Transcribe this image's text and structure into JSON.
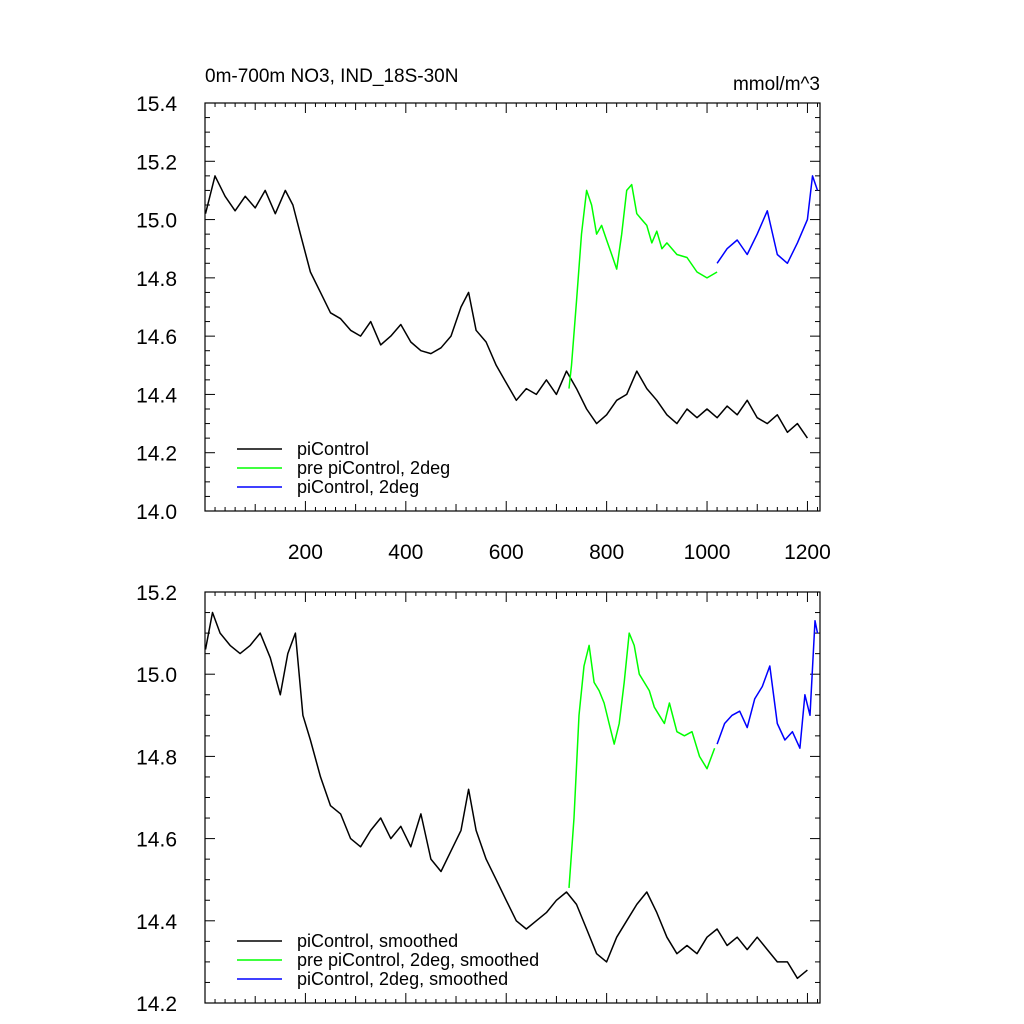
{
  "chart_data": [
    {
      "type": "line",
      "title": "0m-700m NO3, IND_18S-30N",
      "units": "mmol/m^3",
      "xlim": [
        0,
        1225
      ],
      "ylim": [
        14.0,
        15.4
      ],
      "xticks": [
        "200",
        "400",
        "600",
        "800",
        "1000",
        "1200"
      ],
      "yticks": [
        "14.0",
        "14.2",
        "14.4",
        "14.6",
        "14.8",
        "15.0",
        "15.2",
        "15.4"
      ],
      "legend_position": "bottom-left",
      "series": [
        {
          "name": "piControl",
          "color": "#000000",
          "x": [
            1,
            20,
            40,
            60,
            80,
            100,
            120,
            140,
            160,
            175,
            190,
            210,
            230,
            250,
            270,
            290,
            310,
            330,
            350,
            370,
            390,
            410,
            430,
            450,
            470,
            490,
            510,
            525,
            540,
            560,
            580,
            600,
            620,
            640,
            660,
            680,
            700,
            720,
            740,
            760,
            780,
            800,
            820,
            840,
            860,
            880,
            900,
            920,
            940,
            960,
            980,
            1000,
            1020,
            1040,
            1060,
            1080,
            1100,
            1120,
            1140,
            1160,
            1180,
            1200
          ],
          "y": [
            15.02,
            15.15,
            15.08,
            15.03,
            15.08,
            15.04,
            15.1,
            15.02,
            15.1,
            15.05,
            14.95,
            14.82,
            14.75,
            14.68,
            14.66,
            14.62,
            14.6,
            14.65,
            14.57,
            14.6,
            14.64,
            14.58,
            14.55,
            14.54,
            14.56,
            14.6,
            14.7,
            14.75,
            14.62,
            14.58,
            14.5,
            14.44,
            14.38,
            14.42,
            14.4,
            14.45,
            14.4,
            14.48,
            14.42,
            14.35,
            14.3,
            14.33,
            14.38,
            14.4,
            14.48,
            14.42,
            14.38,
            14.33,
            14.3,
            14.35,
            14.32,
            14.35,
            14.32,
            14.36,
            14.33,
            14.38,
            14.32,
            14.3,
            14.33,
            14.27,
            14.3,
            14.25
          ]
        },
        {
          "name": "pre piControl, 2deg",
          "color": "#00ff00",
          "x": [
            725,
            730,
            740,
            750,
            760,
            770,
            780,
            790,
            800,
            810,
            820,
            830,
            840,
            850,
            860,
            870,
            880,
            890,
            900,
            910,
            920,
            940,
            960,
            980,
            1000,
            1020
          ],
          "y": [
            14.42,
            14.5,
            14.72,
            14.95,
            15.1,
            15.05,
            14.95,
            14.98,
            14.93,
            14.88,
            14.83,
            14.95,
            15.1,
            15.12,
            15.02,
            15.0,
            14.98,
            14.92,
            14.96,
            14.9,
            14.92,
            14.88,
            14.87,
            14.82,
            14.8,
            14.82
          ]
        },
        {
          "name": "piControl, 2deg",
          "color": "#0000ff",
          "x": [
            1020,
            1040,
            1060,
            1080,
            1100,
            1120,
            1140,
            1160,
            1180,
            1200,
            1210,
            1220
          ],
          "y": [
            14.85,
            14.9,
            14.93,
            14.88,
            14.95,
            15.03,
            14.88,
            14.85,
            14.92,
            15.0,
            15.15,
            15.1
          ]
        }
      ]
    },
    {
      "type": "line",
      "xlim": [
        0,
        1225
      ],
      "ylim": [
        14.2,
        15.2
      ],
      "yticks": [
        "14.2",
        "14.4",
        "14.6",
        "14.8",
        "15.0",
        "15.2"
      ],
      "legend_position": "bottom-left",
      "series": [
        {
          "name": "piControl, smoothed",
          "color": "#000000",
          "x": [
            1,
            15,
            30,
            50,
            70,
            90,
            110,
            130,
            150,
            165,
            180,
            195,
            210,
            230,
            250,
            270,
            290,
            310,
            330,
            350,
            370,
            390,
            410,
            430,
            450,
            470,
            490,
            510,
            525,
            540,
            560,
            580,
            600,
            620,
            640,
            660,
            680,
            700,
            720,
            740,
            760,
            780,
            800,
            820,
            840,
            860,
            880,
            900,
            920,
            940,
            960,
            980,
            1000,
            1020,
            1040,
            1060,
            1080,
            1100,
            1120,
            1140,
            1160,
            1180,
            1200
          ],
          "y": [
            15.06,
            15.15,
            15.1,
            15.07,
            15.05,
            15.07,
            15.1,
            15.04,
            14.95,
            15.05,
            15.1,
            14.9,
            14.84,
            14.75,
            14.68,
            14.66,
            14.6,
            14.58,
            14.62,
            14.65,
            14.6,
            14.63,
            14.58,
            14.66,
            14.55,
            14.52,
            14.57,
            14.62,
            14.72,
            14.62,
            14.55,
            14.5,
            14.45,
            14.4,
            14.38,
            14.4,
            14.42,
            14.45,
            14.47,
            14.44,
            14.38,
            14.32,
            14.3,
            14.36,
            14.4,
            14.44,
            14.47,
            14.42,
            14.36,
            14.32,
            14.34,
            14.32,
            14.36,
            14.38,
            14.34,
            14.36,
            14.33,
            14.36,
            14.33,
            14.3,
            14.3,
            14.26,
            14.28
          ]
        },
        {
          "name": "pre piControl, 2deg, smoothed",
          "color": "#00ff00",
          "x": [
            725,
            735,
            745,
            755,
            765,
            775,
            785,
            795,
            805,
            815,
            825,
            835,
            845,
            855,
            865,
            875,
            885,
            895,
            905,
            915,
            925,
            940,
            955,
            970,
            985,
            1000,
            1015
          ],
          "y": [
            14.48,
            14.65,
            14.9,
            15.02,
            15.07,
            14.98,
            14.96,
            14.93,
            14.88,
            14.83,
            14.88,
            14.98,
            15.1,
            15.07,
            15.0,
            14.98,
            14.96,
            14.92,
            14.9,
            14.88,
            14.93,
            14.86,
            14.85,
            14.86,
            14.8,
            14.77,
            14.82
          ]
        },
        {
          "name": "piControl, 2deg, smoothed",
          "color": "#0000ff",
          "x": [
            1020,
            1035,
            1050,
            1065,
            1080,
            1095,
            1110,
            1125,
            1140,
            1155,
            1170,
            1185,
            1195,
            1205,
            1215,
            1220
          ],
          "y": [
            14.83,
            14.88,
            14.9,
            14.91,
            14.87,
            14.94,
            14.97,
            15.02,
            14.88,
            14.84,
            14.86,
            14.82,
            14.95,
            14.9,
            15.13,
            15.1
          ]
        }
      ]
    }
  ]
}
